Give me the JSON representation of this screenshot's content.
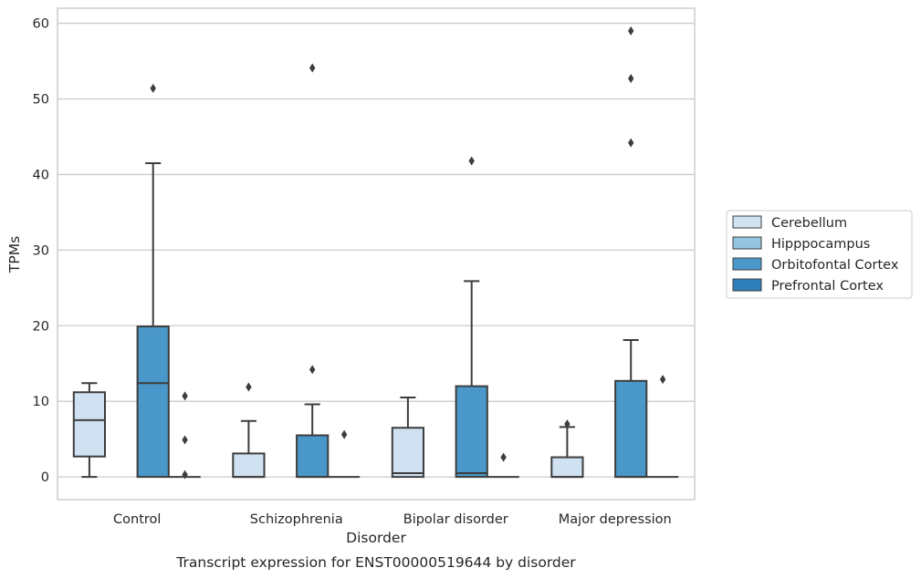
{
  "chart_data": {
    "type": "box",
    "xlabel": "Disorder",
    "ylabel": "TPMs",
    "caption": "Transcript expression for ENST00000519644 by disorder",
    "categories": [
      "Control",
      "Schizophrenia",
      "Bipolar disorder",
      "Major depression"
    ],
    "ylim": [
      -3,
      62
    ],
    "yticks": [
      0,
      10,
      20,
      30,
      40,
      50,
      60
    ],
    "grid": true,
    "legend_position": "right",
    "series": [
      {
        "name": "Cerebellum",
        "color": "#d0e1f2",
        "boxes": [
          {
            "whislo": 0,
            "q1": 2.7,
            "med": 7.5,
            "q3": 11.2,
            "whishi": 12.4,
            "fliers": []
          },
          {
            "whislo": 0,
            "q1": 0,
            "med": 0,
            "q3": 3.1,
            "whishi": 7.4,
            "fliers": [
              11.9
            ]
          },
          {
            "whislo": 0,
            "q1": 0,
            "med": 0.5,
            "q3": 6.5,
            "whishi": 10.5,
            "fliers": []
          },
          {
            "whislo": 0,
            "q1": 0,
            "med": 0,
            "q3": 2.6,
            "whishi": 6.6,
            "fliers": [
              7.0
            ]
          }
        ]
      },
      {
        "name": "Hipppocampus",
        "color": "#94c4df",
        "boxes": [
          null,
          null,
          null,
          null
        ]
      },
      {
        "name": "Orbitofontal Cortex",
        "color": "#4a98c9",
        "boxes": [
          {
            "whislo": 0,
            "q1": 0,
            "med": 12.4,
            "q3": 19.9,
            "whishi": 41.5,
            "fliers": [
              51.4
            ]
          },
          {
            "whislo": 0,
            "q1": 0,
            "med": 0,
            "q3": 5.5,
            "whishi": 9.6,
            "fliers": [
              14.2,
              54.1
            ]
          },
          {
            "whislo": 0,
            "q1": 0,
            "med": 0.5,
            "q3": 12.0,
            "whishi": 25.9,
            "fliers": [
              41.8
            ]
          },
          {
            "whislo": 0,
            "q1": 0,
            "med": 0,
            "q3": 12.7,
            "whishi": 18.1,
            "fliers": [
              44.2,
              52.7,
              59.0
            ]
          }
        ]
      },
      {
        "name": "Prefrontal Cortex",
        "color": "#2e7ebc",
        "boxes": [
          {
            "whislo": 0,
            "q1": 0,
            "med": 0,
            "q3": 0,
            "whishi": 0,
            "fliers": [
              0.3,
              4.9,
              10.7
            ]
          },
          {
            "whislo": 0,
            "q1": 0,
            "med": 0,
            "q3": 0,
            "whishi": 0,
            "fliers": [
              5.6
            ]
          },
          {
            "whislo": 0,
            "q1": 0,
            "med": 0,
            "q3": 0,
            "whishi": 0,
            "fliers": [
              2.6
            ]
          },
          {
            "whislo": 0,
            "q1": 0,
            "med": 0,
            "q3": 0,
            "whishi": 0,
            "fliers": [
              12.9
            ]
          }
        ]
      }
    ]
  }
}
